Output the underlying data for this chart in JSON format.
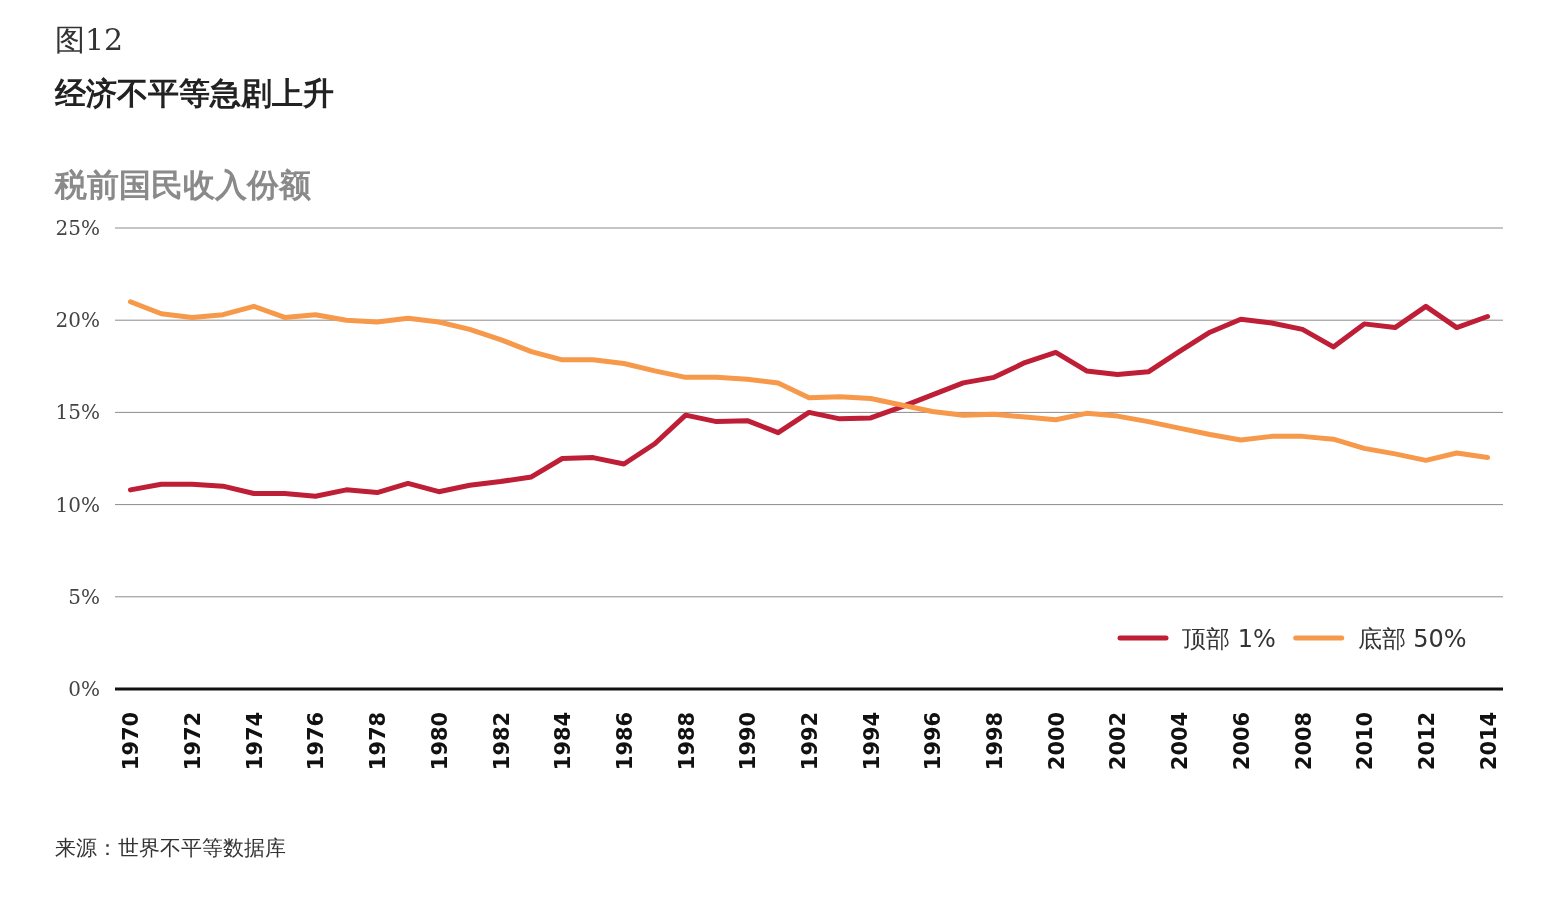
{
  "chart_data": {
    "type": "line",
    "title": "经济不平等急剧上升",
    "ylabel": "税前国民收入份额",
    "annotations": [
      "图12",
      "来源：世界不平等数据库"
    ],
    "x": [
      1970,
      1971,
      1972,
      1973,
      1974,
      1975,
      1976,
      1977,
      1978,
      1979,
      1980,
      1981,
      1982,
      1983,
      1984,
      1985,
      1986,
      1987,
      1988,
      1989,
      1990,
      1991,
      1992,
      1993,
      1994,
      1995,
      1996,
      1997,
      1998,
      1999,
      2000,
      2001,
      2002,
      2003,
      2004,
      2005,
      2006,
      2007,
      2008,
      2009,
      2010,
      2011,
      2012,
      2013,
      2014
    ],
    "series": [
      {
        "name": "顶部 1%",
        "color": "#be1e36",
        "values": [
          10.8,
          11.1,
          11.1,
          11.0,
          10.6,
          10.6,
          10.45,
          10.8,
          10.65,
          11.15,
          10.7,
          11.05,
          11.25,
          11.5,
          12.5,
          12.55,
          12.2,
          13.3,
          14.85,
          14.5,
          14.55,
          13.9,
          15.0,
          14.65,
          14.7,
          15.3,
          15.95,
          16.6,
          16.9,
          17.7,
          18.25,
          17.25,
          17.05,
          17.2,
          18.3,
          19.35,
          20.05,
          19.85,
          19.5,
          18.55,
          19.8,
          19.6,
          20.75,
          19.6,
          20.2
        ]
      },
      {
        "name": "底部 50%",
        "color": "#f7994a",
        "values": [
          21.0,
          20.35,
          20.15,
          20.3,
          20.75,
          20.15,
          20.3,
          20.0,
          19.9,
          20.1,
          19.9,
          19.5,
          18.95,
          18.3,
          17.85,
          17.85,
          17.65,
          17.25,
          16.9,
          16.9,
          16.8,
          16.6,
          15.8,
          15.85,
          15.75,
          15.4,
          15.05,
          14.85,
          14.9,
          14.75,
          14.6,
          14.95,
          14.8,
          14.5,
          14.15,
          13.8,
          13.5,
          13.7,
          13.7,
          13.55,
          13.05,
          12.75,
          12.4,
          12.8,
          12.55
        ]
      }
    ],
    "xlim": [
      1969.5,
      2014.5
    ],
    "xticks": [
      1970,
      1972,
      1974,
      1976,
      1978,
      1980,
      1982,
      1984,
      1986,
      1988,
      1990,
      1992,
      1994,
      1996,
      1998,
      2000,
      2002,
      2004,
      2006,
      2008,
      2010,
      2012,
      2014
    ],
    "ylim": [
      0,
      25
    ],
    "yticks": [
      {
        "value": 0,
        "label": "0%"
      },
      {
        "value": 5,
        "label": "5%"
      },
      {
        "value": 10,
        "label": "10%"
      },
      {
        "value": 15,
        "label": "15%"
      },
      {
        "value": 20,
        "label": "20%"
      },
      {
        "value": 25,
        "label": "25%"
      }
    ],
    "grid": "y",
    "legend": "bottom right",
    "marker": "none",
    "line_style": "solid"
  }
}
